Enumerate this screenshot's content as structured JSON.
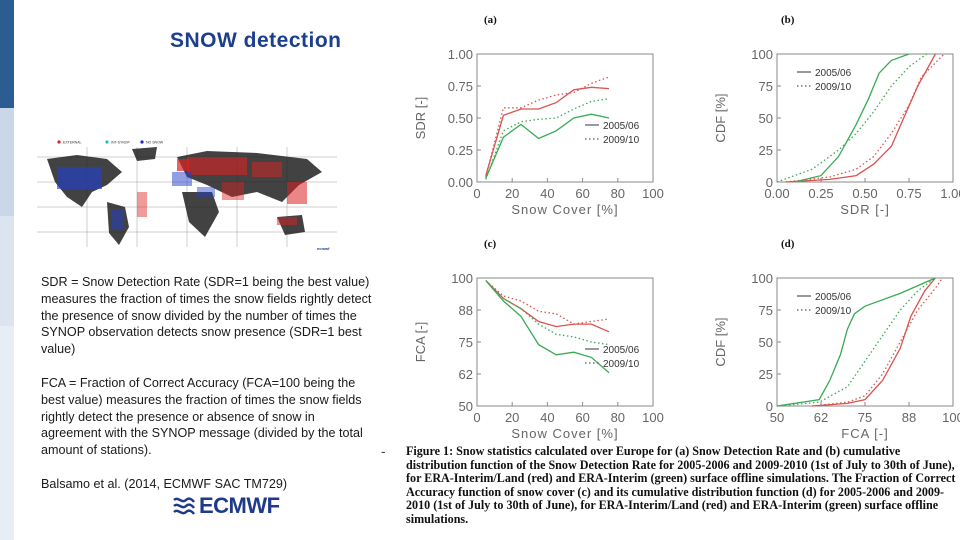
{
  "colors": {
    "accent_blue": "#1c3f8c",
    "era_interim": "#d9534f",
    "era_land": "#3aaa54",
    "axis": "#777777"
  },
  "slide": {
    "title": "SNOW detection",
    "sdr_text": "SDR = Snow Detection Rate (SDR=1 being the best value) measures the fraction of times the snow fields rightly detect the presence of snow divided by the number of times the SYNOP observation detects snow presence (SDR=1 best value)",
    "fca_text": "FCA = Fraction of Correct Accuracy (FCA=100 being the best value) measures the fraction of times the snow fields rightly detect the presence or absence of snow in agreement with the SYNOP message (divided by the total amount of stations).",
    "citation": "Balsamo et al. (2014, ECMWF SAC TM729)",
    "logo_text": "ECMWF",
    "dash": "-"
  },
  "map": {
    "legend": [
      "EXTERNAL",
      "INT-SYNOP",
      "NO SNOW"
    ],
    "logo": "ecmwf"
  },
  "figure": {
    "caption": "Figure 1: Snow statistics calculated over Europe for (a) Snow Detection Rate and (b) cumulative distribution function of the Snow Detection Rate for 2005-2006 and 2009-2010 (1st of July to 30th of June), for ERA-Interim/Land (red) and ERA-Interim (green) surface offline simulations. The Fraction of Correct Accuracy function of snow cover (c) and its cumulative distribution function (d) for 2005-2006 and 2009-2010 (1st of July to 30th of June), for ERA-Interim/Land (red) and ERA-Interim (green) surface offline simulations."
  },
  "chart_data": [
    {
      "panel": "(a)",
      "type": "line",
      "xlabel": "Snow Cover [%]",
      "ylabel": "SDR [-]",
      "xlim": [
        0,
        100
      ],
      "ylim": [
        0,
        1
      ],
      "xticks": [
        "0",
        "20",
        "40",
        "60",
        "80",
        "100"
      ],
      "yticks": [
        "0.00",
        "0.25",
        "0.50",
        "0.75",
        "1.00"
      ],
      "legend": [
        "2005/06",
        "2009/10"
      ],
      "legend_position": "bottom-right",
      "series": [
        {
          "name": "ERA-Interim/Land 2005/06",
          "color": "red",
          "style": "solid",
          "x": [
            5,
            15,
            25,
            35,
            45,
            55,
            65,
            75
          ],
          "y": [
            0.05,
            0.52,
            0.57,
            0.57,
            0.62,
            0.72,
            0.74,
            0.73
          ]
        },
        {
          "name": "ERA-Interim/Land 2009/10",
          "color": "red",
          "style": "dotted",
          "x": [
            5,
            15,
            25,
            35,
            45,
            55,
            65,
            75
          ],
          "y": [
            0.04,
            0.58,
            0.58,
            0.64,
            0.68,
            0.7,
            0.77,
            0.82
          ]
        },
        {
          "name": "ERA-Interim 2005/06",
          "color": "green",
          "style": "solid",
          "x": [
            5,
            15,
            25,
            35,
            45,
            55,
            65,
            75
          ],
          "y": [
            0.03,
            0.35,
            0.45,
            0.34,
            0.4,
            0.5,
            0.53,
            0.5
          ]
        },
        {
          "name": "ERA-Interim 2009/10",
          "color": "green",
          "style": "dotted",
          "x": [
            5,
            15,
            25,
            35,
            45,
            55,
            65,
            75
          ],
          "y": [
            0.02,
            0.4,
            0.47,
            0.49,
            0.5,
            0.57,
            0.63,
            0.65
          ]
        }
      ]
    },
    {
      "panel": "(b)",
      "type": "line",
      "xlabel": "SDR [-]",
      "ylabel": "CDF [%]",
      "xlim": [
        0,
        1
      ],
      "ylim": [
        0,
        100
      ],
      "xticks": [
        "0.00",
        "0.25",
        "0.50",
        "0.75",
        "1.00"
      ],
      "yticks": [
        "0",
        "25",
        "50",
        "75",
        "100"
      ],
      "legend": [
        "2005/06",
        "2009/10"
      ],
      "legend_position": "top-left",
      "series": [
        {
          "name": "ERA-Interim/Land 2005/06",
          "color": "red",
          "style": "solid",
          "x": [
            0.05,
            0.3,
            0.45,
            0.55,
            0.65,
            0.72,
            0.8,
            0.9
          ],
          "y": [
            0,
            2,
            5,
            14,
            28,
            50,
            75,
            100
          ]
        },
        {
          "name": "ERA-Interim/Land 2009/10",
          "color": "red",
          "style": "dotted",
          "x": [
            0.05,
            0.3,
            0.45,
            0.55,
            0.65,
            0.75,
            0.82,
            0.95
          ],
          "y": [
            0,
            4,
            10,
            20,
            38,
            60,
            82,
            100
          ]
        },
        {
          "name": "ERA-Interim 2005/06",
          "color": "green",
          "style": "solid",
          "x": [
            0.1,
            0.25,
            0.35,
            0.45,
            0.52,
            0.58,
            0.65,
            0.75
          ],
          "y": [
            0,
            5,
            20,
            45,
            65,
            85,
            95,
            100
          ]
        },
        {
          "name": "ERA-Interim 2009/10",
          "color": "green",
          "style": "dotted",
          "x": [
            0.0,
            0.2,
            0.35,
            0.45,
            0.55,
            0.65,
            0.75,
            0.85
          ],
          "y": [
            0,
            10,
            25,
            38,
            55,
            75,
            90,
            100
          ]
        }
      ]
    },
    {
      "panel": "(c)",
      "type": "line",
      "xlabel": "Snow Cover [%]",
      "ylabel": "FCA [-]",
      "xlim": [
        0,
        100
      ],
      "ylim": [
        50,
        100
      ],
      "xticks": [
        "0",
        "20",
        "40",
        "60",
        "80",
        "100"
      ],
      "yticks": [
        "50",
        "62",
        "75",
        "88",
        "100"
      ],
      "legend": [
        "2005/06",
        "2009/10"
      ],
      "legend_position": "bottom-right",
      "series": [
        {
          "name": "ERA-Interim/Land 2005/06",
          "color": "red",
          "style": "solid",
          "x": [
            5,
            15,
            25,
            35,
            45,
            55,
            65,
            75
          ],
          "y": [
            99,
            92,
            88,
            83,
            81,
            82,
            82,
            79
          ]
        },
        {
          "name": "ERA-Interim/Land 2009/10",
          "color": "red",
          "style": "dotted",
          "x": [
            5,
            15,
            25,
            35,
            45,
            55,
            65,
            75
          ],
          "y": [
            99,
            93,
            91,
            87,
            86,
            82,
            83,
            84
          ]
        },
        {
          "name": "ERA-Interim 2005/06",
          "color": "green",
          "style": "solid",
          "x": [
            5,
            15,
            25,
            35,
            45,
            55,
            65,
            75
          ],
          "y": [
            99,
            91,
            85,
            74,
            70,
            71,
            69,
            63
          ]
        },
        {
          "name": "ERA-Interim 2009/10",
          "color": "green",
          "style": "dotted",
          "x": [
            5,
            15,
            25,
            35,
            45,
            55,
            65,
            75
          ],
          "y": [
            99,
            92,
            88,
            82,
            78,
            77,
            75,
            74
          ]
        }
      ]
    },
    {
      "panel": "(d)",
      "type": "line",
      "xlabel": "FCA [-]",
      "ylabel": "CDF [%]",
      "xlim": [
        50,
        100
      ],
      "ylim": [
        0,
        100
      ],
      "xticks": [
        "50",
        "62",
        "75",
        "88",
        "100"
      ],
      "yticks": [
        "0",
        "25",
        "50",
        "75",
        "100"
      ],
      "legend": [
        "2005/06",
        "2009/10"
      ],
      "legend_position": "top-left",
      "series": [
        {
          "name": "ERA-Interim/Land 2005/06",
          "color": "red",
          "style": "solid",
          "x": [
            60,
            70,
            75,
            80,
            85,
            88,
            92,
            95
          ],
          "y": [
            0,
            2,
            5,
            20,
            45,
            70,
            90,
            100
          ]
        },
        {
          "name": "ERA-Interim/Land 2009/10",
          "color": "red",
          "style": "dotted",
          "x": [
            60,
            70,
            75,
            80,
            85,
            90,
            95,
            97
          ],
          "y": [
            0,
            3,
            8,
            25,
            50,
            75,
            92,
            100
          ]
        },
        {
          "name": "ERA-Interim 2005/06",
          "color": "green",
          "style": "solid",
          "x": [
            50,
            62,
            65,
            68,
            70,
            72,
            75,
            85,
            95
          ],
          "y": [
            0,
            5,
            20,
            40,
            60,
            72,
            78,
            88,
            100
          ]
        },
        {
          "name": "ERA-Interim 2009/10",
          "color": "green",
          "style": "dotted",
          "x": [
            50,
            62,
            70,
            75,
            80,
            85,
            90,
            95
          ],
          "y": [
            0,
            3,
            15,
            35,
            55,
            75,
            90,
            100
          ]
        }
      ]
    }
  ]
}
